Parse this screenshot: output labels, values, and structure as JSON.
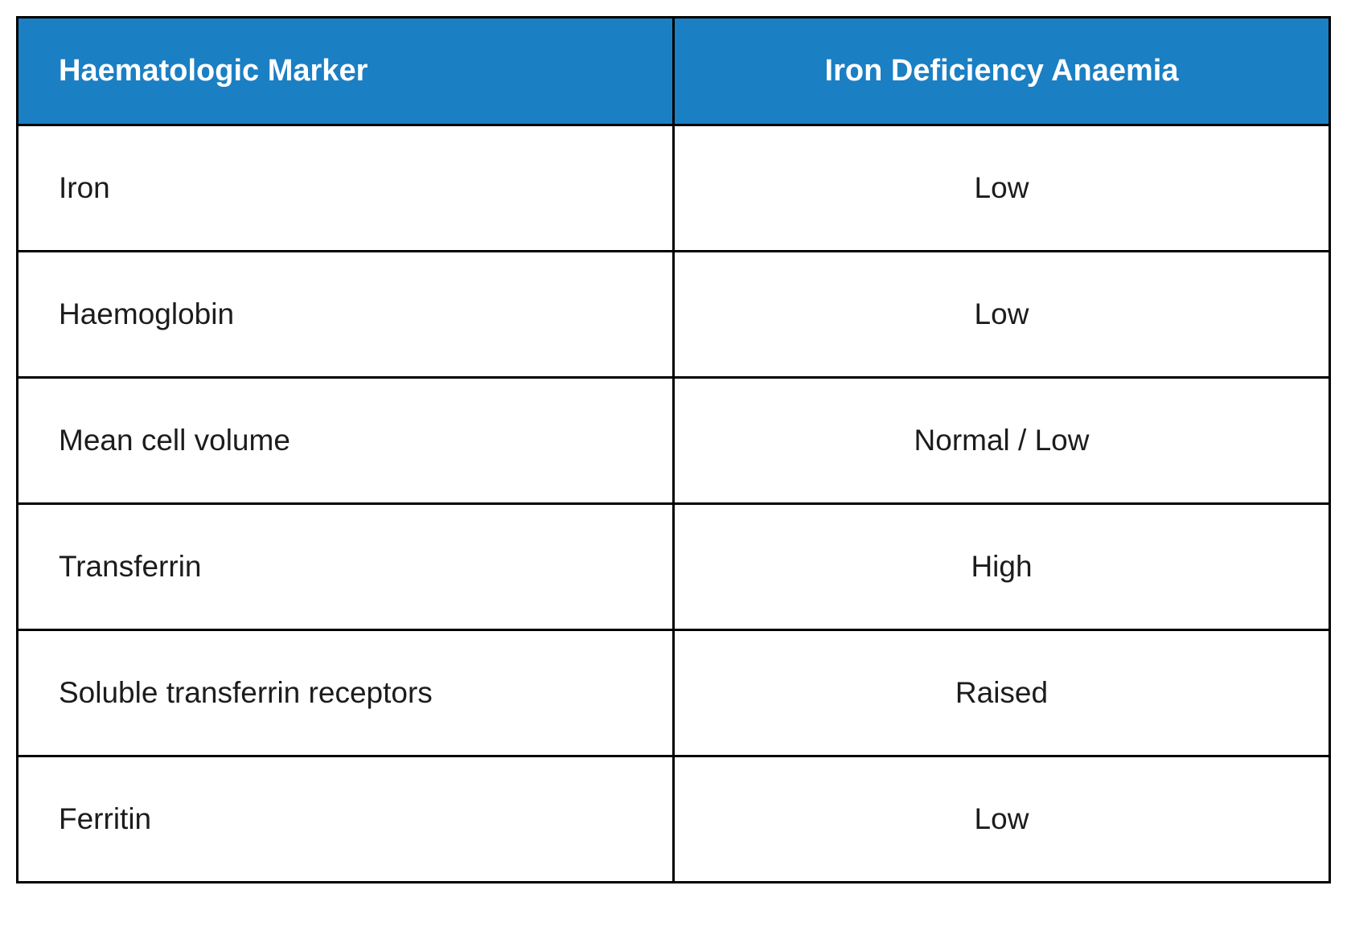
{
  "table": {
    "type": "table",
    "columns": [
      {
        "label": "Haematologic Marker",
        "align": "left"
      },
      {
        "label": "Iron Deficiency Anaemia",
        "align": "center"
      }
    ],
    "rows": [
      {
        "marker": "Iron",
        "value": "Low"
      },
      {
        "marker": "Haemoglobin",
        "value": "Low"
      },
      {
        "marker": "Mean cell volume",
        "value": "Normal / Low"
      },
      {
        "marker": "Transferrin",
        "value": "High"
      },
      {
        "marker": "Soluble transferrin receptors",
        "value": "Raised"
      },
      {
        "marker": "Ferritin",
        "value": "Low"
      }
    ],
    "header_bg_color": "#1b7fc4",
    "header_text_color": "#ffffff",
    "header_fontsize": 38,
    "header_fontweight": 600,
    "cell_bg_color": "#ffffff",
    "cell_text_color": "#1c1c1c",
    "cell_fontsize": 37,
    "border_color": "#000000",
    "border_width": 3,
    "column_widths": [
      "50%",
      "50%"
    ]
  }
}
